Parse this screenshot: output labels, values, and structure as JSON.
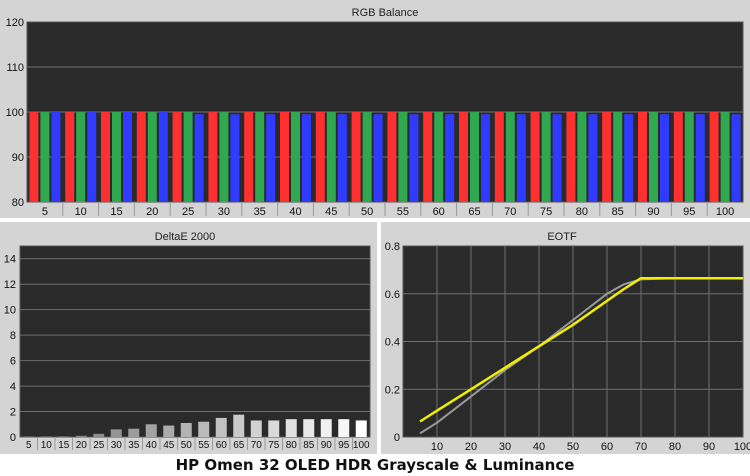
{
  "colors": {
    "red": "#ff3030",
    "green": "#2fa84f",
    "blue": "#2f3cff",
    "yellow": "#f0f000",
    "gray": "#9a9a9a",
    "plot_bg": "#2a2a2a"
  },
  "caption": "HP Omen 32 OLED HDR Grayscale & Luminance",
  "chart_data": [
    {
      "type": "bar",
      "title": "RGB Balance",
      "categories": [
        "5",
        "10",
        "15",
        "20",
        "25",
        "30",
        "35",
        "40",
        "45",
        "50",
        "55",
        "60",
        "65",
        "70",
        "75",
        "80",
        "85",
        "90",
        "95",
        "100"
      ],
      "series": [
        {
          "values": [
            100,
            100,
            100,
            100,
            100,
            100,
            100,
            100,
            100,
            100,
            100,
            100,
            100,
            100,
            100,
            100,
            100,
            100,
            100,
            100
          ]
        },
        {
          "values": [
            100,
            100,
            100,
            100,
            100,
            100,
            100,
            100,
            100,
            100,
            100,
            100,
            100,
            100,
            100,
            100,
            100,
            100,
            100,
            100
          ]
        },
        {
          "values": [
            100,
            100,
            100,
            100,
            99.5,
            99.5,
            99.5,
            99.5,
            99.5,
            99.5,
            99.5,
            99.5,
            99.5,
            99.5,
            99.5,
            99.5,
            99.5,
            99.5,
            99.5,
            99.5
          ]
        }
      ],
      "ylim": [
        80,
        120
      ],
      "yticks": [
        80,
        90,
        100,
        110,
        120
      ],
      "grid": true
    },
    {
      "type": "bar",
      "title": "DeltaE 2000",
      "categories": [
        "5",
        "10",
        "15",
        "20",
        "25",
        "30",
        "35",
        "40",
        "45",
        "50",
        "55",
        "60",
        "65",
        "70",
        "75",
        "80",
        "85",
        "90",
        "95",
        "100"
      ],
      "values": [
        0.05,
        0.05,
        0.05,
        0.1,
        0.25,
        0.6,
        0.65,
        1.0,
        0.9,
        1.1,
        1.2,
        1.5,
        1.75,
        1.3,
        1.3,
        1.4,
        1.4,
        1.4,
        1.4,
        1.3
      ],
      "ylim": [
        0,
        15
      ],
      "yticks": [
        0,
        2,
        4,
        6,
        8,
        10,
        12,
        14
      ],
      "grid": true
    },
    {
      "type": "line",
      "title": "EOTF",
      "series": [
        {
          "x": [
            5,
            10,
            20,
            30,
            40,
            50,
            60,
            65,
            70,
            80,
            90,
            100
          ],
          "y": [
            0.065,
            0.11,
            0.2,
            0.29,
            0.38,
            0.47,
            0.57,
            0.62,
            0.665,
            0.665,
            0.665,
            0.665
          ]
        },
        {
          "x": [
            5,
            10,
            20,
            30,
            40,
            50,
            60,
            65,
            70,
            80,
            90,
            100
          ],
          "y": [
            0.015,
            0.06,
            0.17,
            0.28,
            0.38,
            0.49,
            0.6,
            0.64,
            0.66,
            0.665,
            0.665,
            0.665
          ]
        }
      ],
      "xticks": [
        10,
        20,
        30,
        40,
        50,
        60,
        70,
        80,
        90,
        100
      ],
      "yticks": [
        0,
        0.2,
        0.4,
        0.6,
        0.8
      ],
      "xlim": [
        0,
        100
      ],
      "ylim": [
        0,
        0.8
      ],
      "grid": true
    }
  ]
}
